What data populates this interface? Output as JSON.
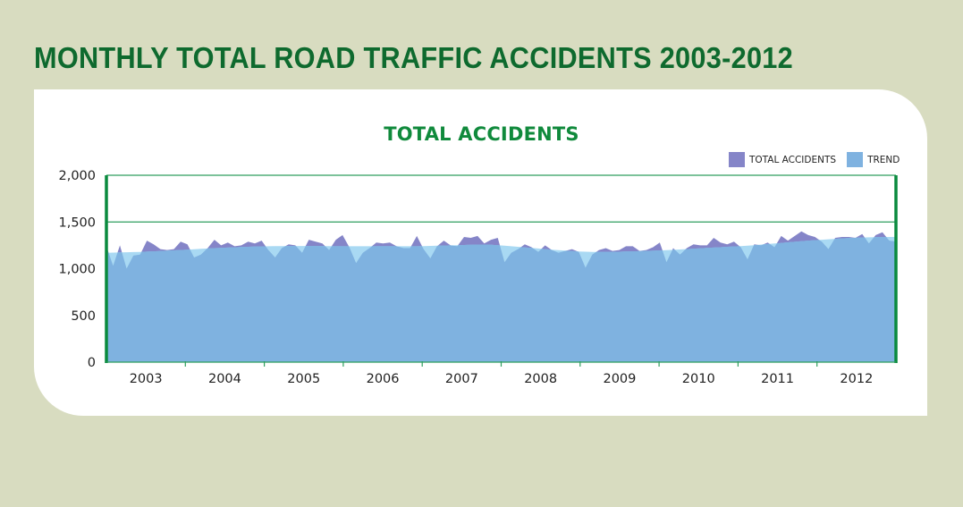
{
  "header": {
    "title": "MONTHLY TOTAL ROAD TRAFFIC ACCIDENTS 2003-2012"
  },
  "colors": {
    "background": "#d8dcc0",
    "title_green": "#0e6a2e",
    "chart_title_green": "#108a3c",
    "axis_green": "#0a8a3e",
    "grid_green": "#2e9e5e",
    "total_accidents": "#8585c8",
    "trend": "#7fb2e0",
    "trend_above": "#a9d9f3"
  },
  "chart_data": {
    "type": "area",
    "title": "TOTAL ACCIDENTS",
    "xlabel": "",
    "ylabel": "",
    "ylim": [
      0,
      2000
    ],
    "yticks": [
      0,
      500,
      1000,
      1500,
      2000
    ],
    "ytick_labels": [
      "0",
      "500",
      "1,000",
      "1,500",
      "2,000"
    ],
    "grid": true,
    "legend_position": "top-right",
    "legend": [
      "TOTAL ACCIDENTS",
      "TREND"
    ],
    "categories": [
      "2003",
      "2004",
      "2005",
      "2006",
      "2007",
      "2008",
      "2009",
      "2010",
      "2011",
      "2012"
    ],
    "x_unit": "month",
    "series": [
      {
        "name": "TOTAL ACCIDENTS",
        "values": [
          1240,
          1030,
          1250,
          1000,
          1140,
          1150,
          1300,
          1260,
          1210,
          1200,
          1210,
          1290,
          1260,
          1120,
          1150,
          1220,
          1310,
          1250,
          1280,
          1240,
          1250,
          1290,
          1270,
          1300,
          1200,
          1120,
          1220,
          1260,
          1250,
          1170,
          1310,
          1290,
          1270,
          1200,
          1310,
          1360,
          1230,
          1060,
          1170,
          1220,
          1280,
          1270,
          1280,
          1240,
          1220,
          1220,
          1350,
          1210,
          1110,
          1240,
          1300,
          1250,
          1240,
          1340,
          1330,
          1350,
          1270,
          1310,
          1330,
          1070,
          1170,
          1210,
          1260,
          1230,
          1180,
          1250,
          1200,
          1170,
          1190,
          1210,
          1180,
          1010,
          1150,
          1200,
          1220,
          1190,
          1200,
          1240,
          1240,
          1190,
          1200,
          1230,
          1280,
          1070,
          1220,
          1150,
          1220,
          1260,
          1250,
          1250,
          1330,
          1280,
          1260,
          1290,
          1230,
          1100,
          1260,
          1250,
          1280,
          1230,
          1350,
          1300,
          1350,
          1400,
          1360,
          1340,
          1290,
          1210,
          1330,
          1340,
          1340,
          1330,
          1370,
          1270,
          1360,
          1390,
          1300,
          1290
        ]
      },
      {
        "name": "TREND",
        "values": [
          1170,
          1172,
          1174,
          1176,
          1178,
          1180,
          1183,
          1186,
          1189,
          1192,
          1196,
          1200,
          1204,
          1208,
          1212,
          1216,
          1220,
          1223,
          1226,
          1229,
          1232,
          1234,
          1236,
          1238,
          1240,
          1241,
          1242,
          1243,
          1243,
          1243,
          1243,
          1243,
          1242,
          1241,
          1240,
          1240,
          1240,
          1240,
          1240,
          1240,
          1240,
          1240,
          1240,
          1240,
          1240,
          1240,
          1240,
          1242,
          1244,
          1246,
          1248,
          1250,
          1252,
          1254,
          1256,
          1257,
          1258,
          1256,
          1252,
          1246,
          1240,
          1234,
          1228,
          1222,
          1216,
          1210,
          1204,
          1198,
          1193,
          1189,
          1185,
          1182,
          1180,
          1180,
          1180,
          1181,
          1182,
          1184,
          1186,
          1188,
          1190,
          1192,
          1195,
          1198,
          1202,
          1206,
          1210,
          1214,
          1218,
          1222,
          1226,
          1230,
          1234,
          1238,
          1242,
          1247,
          1252,
          1258,
          1264,
          1270,
          1276,
          1282,
          1288,
          1294,
          1300,
          1305,
          1310,
          1315,
          1320,
          1324,
          1328,
          1331,
          1334,
          1336,
          1338,
          1340,
          1340,
          1340
        ]
      }
    ]
  }
}
